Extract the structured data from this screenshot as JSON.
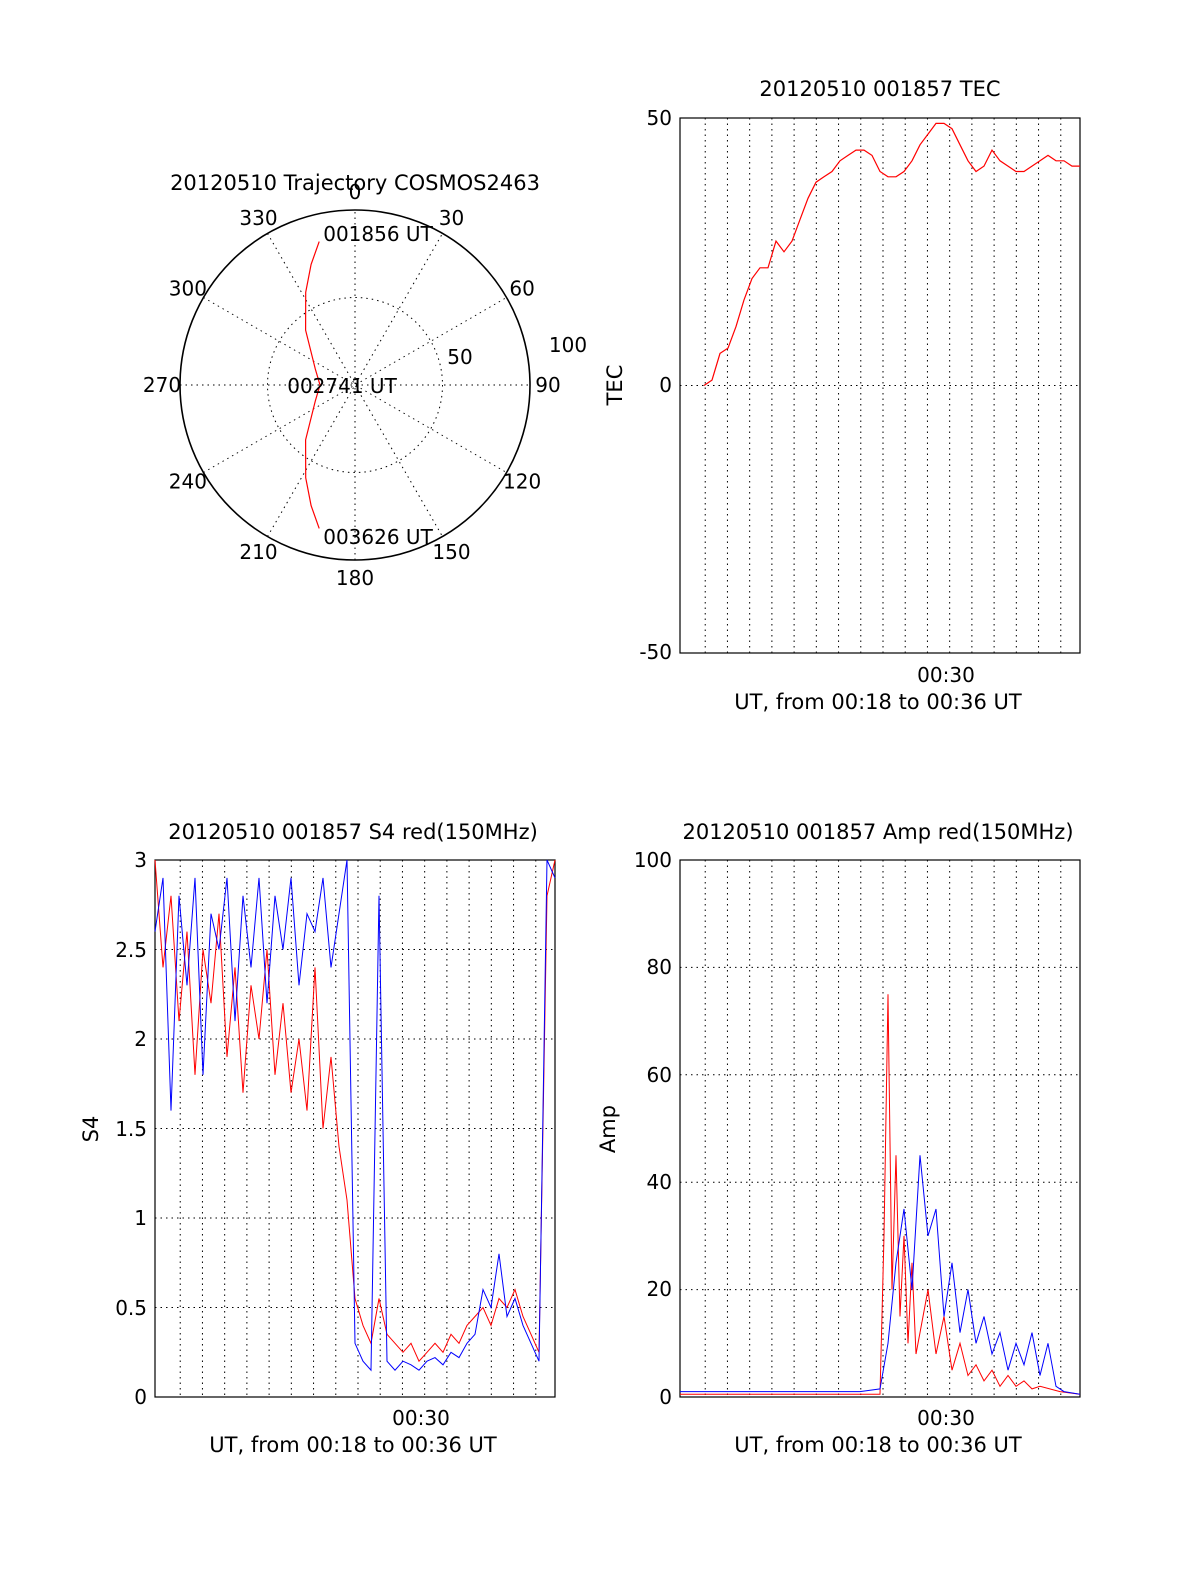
{
  "colors": {
    "red": "#ff0000",
    "blue": "#0000ff",
    "axis": "#000000",
    "background": "#ffffff"
  },
  "chart_data": [
    {
      "type": "polar",
      "title": "20120510 Trajectory COSMOS2463",
      "angle_ticks": [
        "0",
        "30",
        "60",
        "90",
        "120",
        "150",
        "180",
        "210",
        "240",
        "270",
        "300",
        "330"
      ],
      "radius_ticks": [
        "50",
        "100"
      ],
      "annotations": [
        "001856 UT",
        "002741 UT",
        "003626 UT"
      ],
      "trajectory": {
        "color": "red",
        "points": [
          {
            "az": 346,
            "el": 14
          },
          {
            "az": 340,
            "el": 24
          },
          {
            "az": 332,
            "el": 36
          },
          {
            "az": 318,
            "el": 52
          },
          {
            "az": 292,
            "el": 68
          },
          {
            "az": 270,
            "el": 72
          },
          {
            "az": 248,
            "el": 68
          },
          {
            "az": 222,
            "el": 52
          },
          {
            "az": 208,
            "el": 36
          },
          {
            "az": 200,
            "el": 24
          },
          {
            "az": 194,
            "el": 14
          }
        ]
      }
    },
    {
      "type": "line",
      "title": "20120510 001857 TEC",
      "ylabel": "TEC",
      "xlabel": "UT, from 00:18 to 00:36 UT",
      "x_tick_labels": [
        "00:30"
      ],
      "ylim": [
        -50,
        50
      ],
      "y_ticks": [
        "50",
        "0",
        "-50"
      ],
      "grid": true,
      "series": [
        {
          "color": "red",
          "x": [
            0.06,
            0.08,
            0.1,
            0.12,
            0.14,
            0.16,
            0.18,
            0.2,
            0.22,
            0.24,
            0.26,
            0.28,
            0.3,
            0.32,
            0.34,
            0.36,
            0.38,
            0.4,
            0.42,
            0.44,
            0.46,
            0.48,
            0.5,
            0.52,
            0.54,
            0.56,
            0.58,
            0.6,
            0.62,
            0.64,
            0.66,
            0.68,
            0.7,
            0.72,
            0.74,
            0.76,
            0.78,
            0.8,
            0.82,
            0.84,
            0.86,
            0.88,
            0.9,
            0.92,
            0.94,
            0.96,
            0.98,
            1.0
          ],
          "values": [
            0,
            1,
            6,
            7,
            11,
            16,
            20,
            22,
            22,
            27,
            25,
            27,
            31,
            35,
            38,
            39,
            40,
            42,
            43,
            44,
            44,
            43,
            40,
            39,
            39,
            40,
            42,
            45,
            47,
            49,
            49,
            48,
            45,
            42,
            40,
            41,
            44,
            42,
            41,
            40,
            40,
            41,
            42,
            43,
            42,
            42,
            41,
            41
          ]
        }
      ]
    },
    {
      "type": "line",
      "title": "20120510 001857 S4 red(150MHz)",
      "ylabel": "S4",
      "xlabel": "UT, from 00:18 to 00:36 UT",
      "x_tick_labels": [
        "00:30"
      ],
      "ylim": [
        0,
        3
      ],
      "y_ticks": [
        "3",
        "2.5",
        "2",
        "1.5",
        "1",
        "0.5",
        "0"
      ],
      "grid": true,
      "series": [
        {
          "color": "red",
          "x": [
            0.0,
            0.02,
            0.04,
            0.06,
            0.08,
            0.1,
            0.12,
            0.14,
            0.16,
            0.18,
            0.2,
            0.22,
            0.24,
            0.26,
            0.28,
            0.3,
            0.32,
            0.34,
            0.36,
            0.38,
            0.4,
            0.42,
            0.44,
            0.46,
            0.48,
            0.5,
            0.52,
            0.54,
            0.56,
            0.58,
            0.6,
            0.62,
            0.64,
            0.66,
            0.68,
            0.7,
            0.72,
            0.74,
            0.76,
            0.78,
            0.8,
            0.82,
            0.84,
            0.86,
            0.88,
            0.9,
            0.92,
            0.94,
            0.96,
            0.98,
            1.0
          ],
          "values": [
            3,
            2.4,
            2.8,
            2.1,
            2.6,
            1.8,
            2.5,
            2.2,
            2.7,
            1.9,
            2.4,
            1.7,
            2.3,
            2.0,
            2.5,
            1.8,
            2.2,
            1.7,
            2.0,
            1.6,
            2.4,
            1.5,
            1.9,
            1.4,
            1.1,
            0.55,
            0.4,
            0.3,
            0.55,
            0.35,
            0.3,
            0.25,
            0.3,
            0.2,
            0.25,
            0.3,
            0.25,
            0.35,
            0.3,
            0.4,
            0.45,
            0.5,
            0.4,
            0.55,
            0.5,
            0.6,
            0.45,
            0.35,
            0.25,
            2.8,
            3
          ]
        },
        {
          "color": "blue",
          "x": [
            0.0,
            0.02,
            0.04,
            0.06,
            0.08,
            0.1,
            0.12,
            0.14,
            0.16,
            0.18,
            0.2,
            0.22,
            0.24,
            0.26,
            0.28,
            0.3,
            0.32,
            0.34,
            0.36,
            0.38,
            0.4,
            0.42,
            0.44,
            0.46,
            0.48,
            0.5,
            0.52,
            0.54,
            0.56,
            0.58,
            0.6,
            0.62,
            0.64,
            0.66,
            0.68,
            0.7,
            0.72,
            0.74,
            0.76,
            0.78,
            0.8,
            0.82,
            0.84,
            0.86,
            0.88,
            0.9,
            0.92,
            0.94,
            0.96,
            0.98,
            1.0
          ],
          "values": [
            2.6,
            2.9,
            1.6,
            2.8,
            2.3,
            2.9,
            1.8,
            2.7,
            2.5,
            2.9,
            2.1,
            2.8,
            2.4,
            2.9,
            2.2,
            2.8,
            2.5,
            2.9,
            2.3,
            2.7,
            2.6,
            2.9,
            2.4,
            2.7,
            3,
            0.3,
            0.2,
            0.15,
            2.8,
            0.2,
            0.15,
            0.2,
            0.18,
            0.15,
            0.2,
            0.22,
            0.18,
            0.25,
            0.22,
            0.3,
            0.35,
            0.6,
            0.5,
            0.8,
            0.45,
            0.55,
            0.4,
            0.3,
            0.2,
            3,
            2.9
          ]
        }
      ]
    },
    {
      "type": "line",
      "title": "20120510 001857 Amp red(150MHz)",
      "ylabel": "Amp",
      "xlabel": "UT, from 00:18 to 00:36 UT",
      "x_tick_labels": [
        "00:30"
      ],
      "ylim": [
        0,
        100
      ],
      "y_ticks": [
        "100",
        "80",
        "60",
        "40",
        "20",
        "0"
      ],
      "grid": true,
      "series": [
        {
          "color": "red",
          "x": [
            0.0,
            0.05,
            0.1,
            0.15,
            0.2,
            0.25,
            0.3,
            0.35,
            0.4,
            0.45,
            0.5,
            0.51,
            0.52,
            0.53,
            0.54,
            0.55,
            0.56,
            0.57,
            0.58,
            0.59,
            0.6,
            0.62,
            0.64,
            0.66,
            0.68,
            0.7,
            0.72,
            0.74,
            0.76,
            0.78,
            0.8,
            0.82,
            0.84,
            0.86,
            0.88,
            0.9,
            0.95,
            1.0
          ],
          "values": [
            0.5,
            0.5,
            0.5,
            0.5,
            0.5,
            0.5,
            0.5,
            0.5,
            0.5,
            0.5,
            0.5,
            30,
            75,
            20,
            45,
            15,
            30,
            10,
            25,
            8,
            12,
            20,
            8,
            15,
            5,
            10,
            4,
            6,
            3,
            5,
            2,
            4,
            2,
            3,
            1.5,
            2,
            1,
            0.5
          ]
        },
        {
          "color": "blue",
          "x": [
            0.0,
            0.05,
            0.1,
            0.15,
            0.2,
            0.25,
            0.3,
            0.35,
            0.4,
            0.45,
            0.5,
            0.52,
            0.54,
            0.56,
            0.58,
            0.6,
            0.62,
            0.64,
            0.66,
            0.68,
            0.7,
            0.72,
            0.74,
            0.76,
            0.78,
            0.8,
            0.82,
            0.84,
            0.86,
            0.88,
            0.9,
            0.92,
            0.94,
            0.96,
            1.0
          ],
          "values": [
            1,
            1,
            1,
            1,
            1,
            1,
            1,
            1,
            1,
            1,
            1.5,
            10,
            25,
            35,
            20,
            45,
            30,
            35,
            15,
            25,
            12,
            20,
            10,
            15,
            8,
            12,
            5,
            10,
            6,
            12,
            4,
            10,
            2,
            1,
            0.5
          ]
        }
      ]
    }
  ]
}
